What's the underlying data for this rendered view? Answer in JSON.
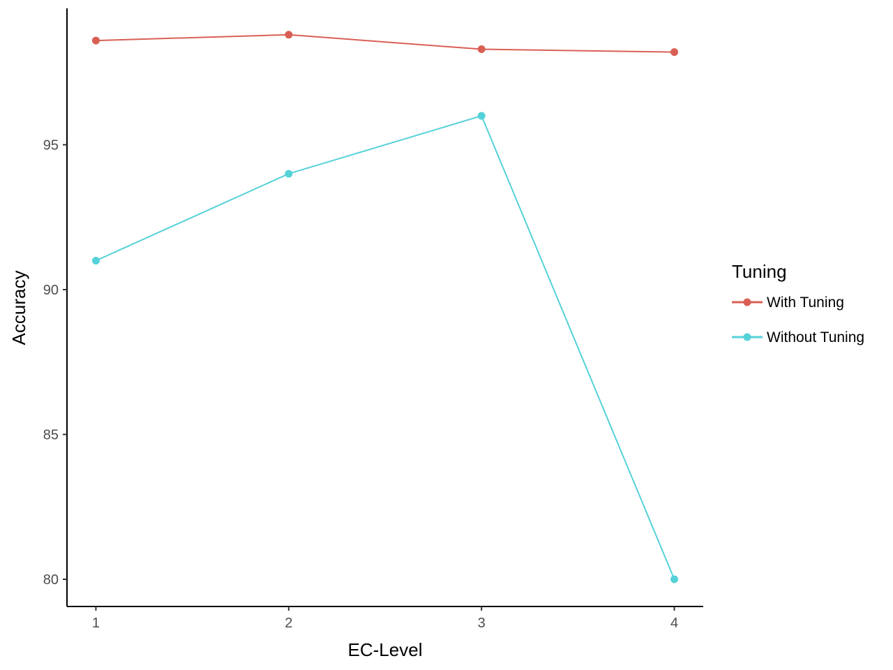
{
  "chart_data": {
    "type": "line",
    "x": [
      1,
      2,
      3,
      4
    ],
    "xticks": [
      "1",
      "2",
      "3",
      "4"
    ],
    "yticks": [
      "80",
      "85",
      "90",
      "95"
    ],
    "xlabel": "EC-Level",
    "ylabel": "Accuracy",
    "xlim": [
      0.85,
      4.15
    ],
    "ylim": [
      79.06,
      99.71
    ],
    "grid": false,
    "legend": {
      "title": "Tuning",
      "placement": "right"
    },
    "series": [
      {
        "name": "With Tuning",
        "color": "#d95f55",
        "values": [
          98.6,
          98.8,
          98.3,
          98.2
        ]
      },
      {
        "name": "Without Tuning",
        "color": "#55d1d8",
        "values": [
          91.0,
          94.0,
          96.0,
          80.0
        ]
      }
    ]
  }
}
